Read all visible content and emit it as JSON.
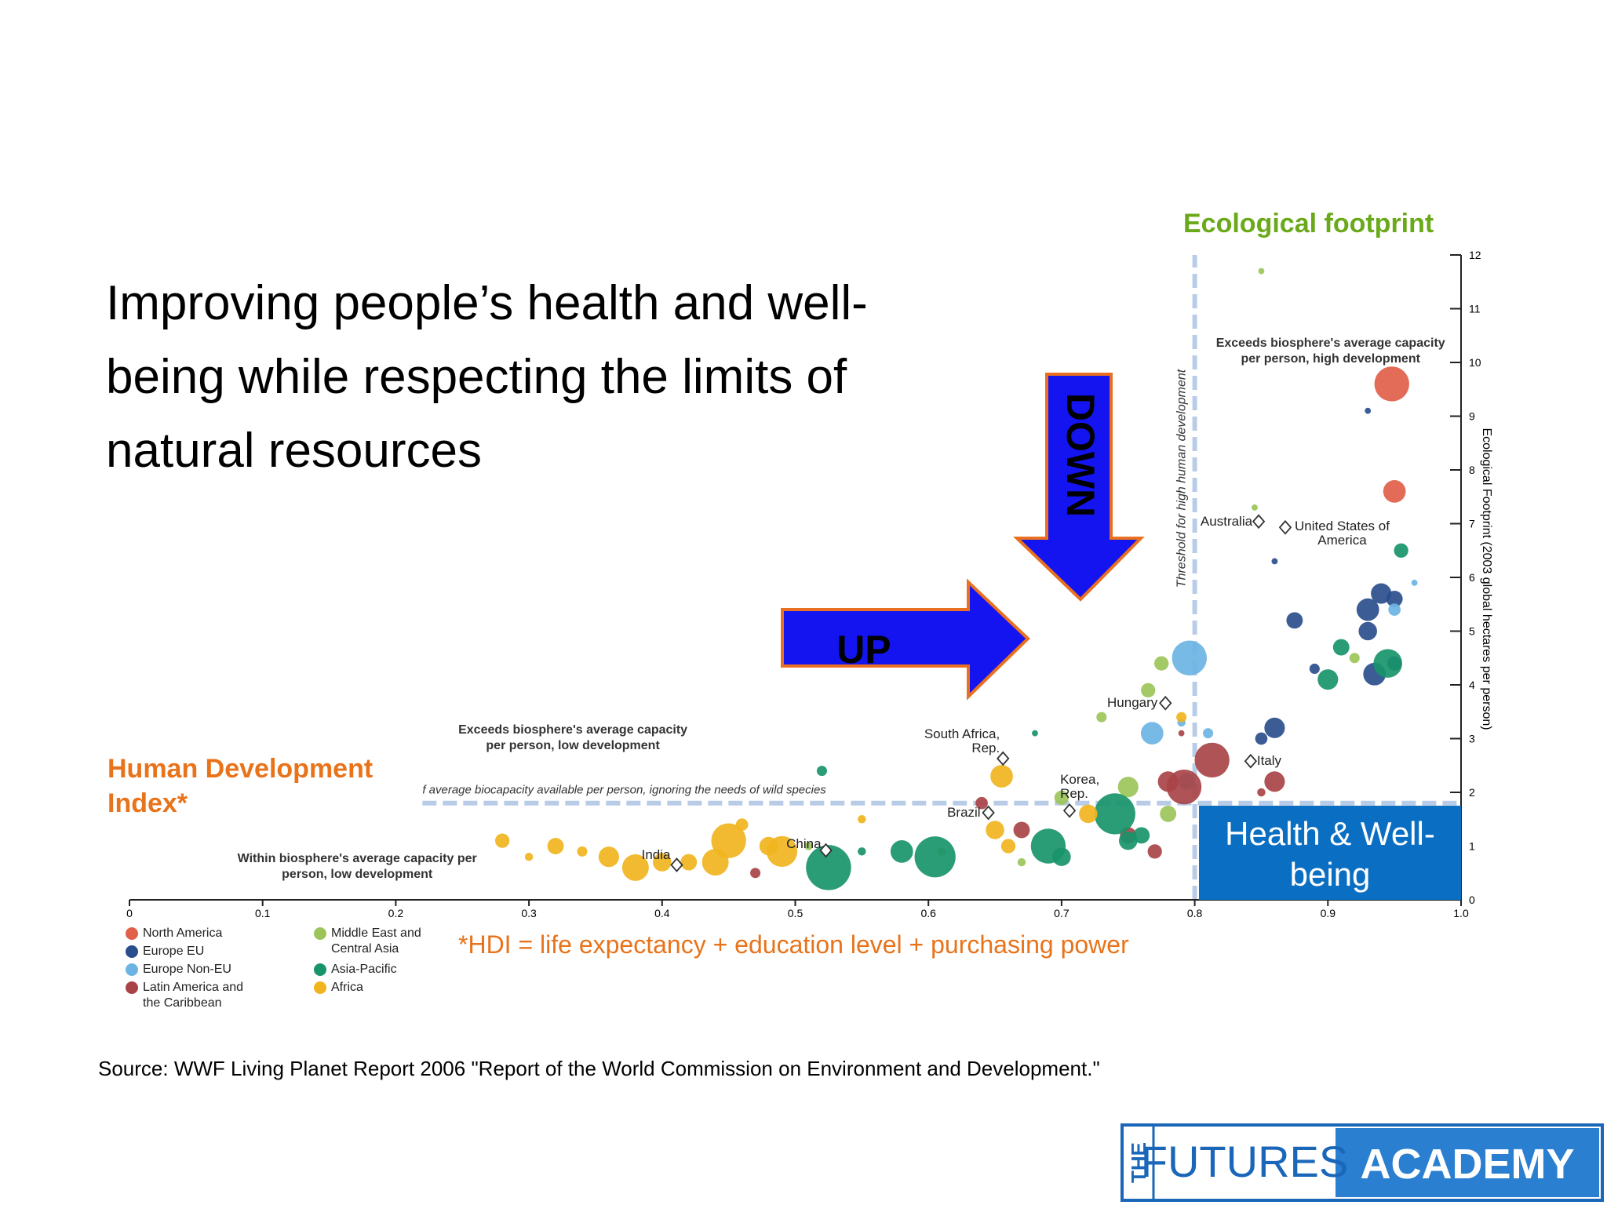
{
  "slide": {
    "title": "Improving people’s health and well-being while respecting the limits of natural resources",
    "y_heading": "Ecological footprint",
    "x_heading": "Human Development Index*",
    "footnote": "*HDI = life expectancy + education level + purchasing power",
    "source": "Source: WWF Living Planet Report 2006 \"Report of the World Commission on Environment and Development.\"",
    "arrow_up": "UP",
    "arrow_down": "DOWN",
    "box": "Health & Well-being",
    "logo": {
      "the": "THE",
      "futures": "FUTURES",
      "academy": "ACADEMY"
    }
  },
  "chart_data": {
    "type": "scatter",
    "y_axis_side": "right",
    "ylabel": "Ecological Footprint (2003 global hectares per person)",
    "xlim": [
      0,
      1
    ],
    "xticks": [
      0,
      0.1,
      0.2,
      0.3,
      0.4,
      0.5,
      0.6,
      0.7,
      0.8,
      0.9,
      {
        "value": 1,
        "label": "1.0"
      }
    ],
    "ylim": [
      0,
      12
    ],
    "yticks": [
      0,
      1,
      2,
      3,
      4,
      5,
      6,
      7,
      8,
      9,
      10,
      11,
      12
    ],
    "threshold_x": {
      "value": 0.8,
      "label": "Threshold for high human development"
    },
    "threshold_y": {
      "value": 1.8,
      "x_start": 0.22,
      "label": "f average biocapacity available per person, ignoring the needs of wild species"
    },
    "annotations": [
      {
        "text": "Exceeds biosphere's average capacity per person, high development",
        "x": 0.902,
        "y": 10.5
      },
      {
        "text": "Exceeds biosphere's average capacity per person, low development",
        "x": 0.333,
        "y": 3.3
      },
      {
        "text": "Within biosphere's average capacity per person, low development",
        "x": 0.171,
        "y": 0.9
      }
    ],
    "countries": [
      {
        "name": "India",
        "x": 0.411,
        "y": 0.65
      },
      {
        "name": "China",
        "x": 0.523,
        "y": 0.92
      },
      {
        "name": "Brazil",
        "x": 0.645,
        "y": 1.62
      },
      {
        "name": "South Africa, Rep.",
        "x": 0.656,
        "y": 2.63
      },
      {
        "name": "Korea, Rep.",
        "x": 0.706,
        "y": 1.66
      },
      {
        "name": "Hungary",
        "x": 0.778,
        "y": 3.66
      },
      {
        "name": "Australia",
        "x": 0.848,
        "y": 7.04
      },
      {
        "name": "United States of America",
        "x": 0.868,
        "y": 6.93
      },
      {
        "name": "Italy",
        "x": 0.842,
        "y": 2.58
      }
    ],
    "series": [
      {
        "name": "North America",
        "color": "#e0604a",
        "x": [
          0.948,
          0.95
        ],
        "values": [
          9.6,
          7.6
        ],
        "sizes": [
          17,
          11
        ]
      },
      {
        "name": "Europe EU",
        "color": "#2a4e8c",
        "x": [
          0.93,
          0.94,
          0.95,
          0.935,
          0.93,
          0.875,
          0.86,
          0.85,
          0.89,
          0.95,
          0.93,
          0.86
        ],
        "values": [
          5.4,
          5.7,
          5.6,
          4.2,
          5.0,
          5.2,
          3.2,
          3.0,
          4.3,
          4.4,
          9.1,
          6.3
        ],
        "sizes": [
          11,
          10,
          8,
          11,
          9,
          8,
          10,
          6,
          5,
          7,
          3,
          3
        ]
      },
      {
        "name": "Europe Non-EU",
        "color": "#6cb4e4",
        "x": [
          0.796,
          0.768,
          0.794,
          0.95,
          0.965,
          0.79,
          0.81
        ],
        "values": [
          4.5,
          3.1,
          2.2,
          5.4,
          5.9,
          3.3,
          3.1
        ],
        "sizes": [
          17,
          11,
          8,
          6,
          3,
          4,
          5
        ]
      },
      {
        "name": "Latin America and the Caribbean",
        "color": "#a84448",
        "x": [
          0.813,
          0.792,
          0.78,
          0.86,
          0.75,
          0.67,
          0.64,
          0.77,
          0.47,
          0.85,
          0.79
        ],
        "values": [
          2.6,
          2.1,
          2.2,
          2.2,
          1.2,
          1.3,
          1.8,
          0.9,
          0.5,
          2.0,
          3.1
        ],
        "sizes": [
          17,
          17,
          10,
          10,
          8,
          8,
          6,
          7,
          5,
          4,
          3
        ]
      },
      {
        "name": "Middle East and Central Asia",
        "color": "#9cc45a",
        "x": [
          0.775,
          0.765,
          0.85,
          0.845,
          0.78,
          0.75,
          0.7,
          0.73,
          0.67,
          0.61,
          0.51,
          0.92
        ],
        "values": [
          4.4,
          3.9,
          11.7,
          7.3,
          1.6,
          2.1,
          1.9,
          3.4,
          0.7,
          0.9,
          1.0,
          4.5
        ],
        "sizes": [
          7,
          7,
          3,
          3,
          8,
          10,
          7,
          5,
          4,
          4,
          4,
          5
        ]
      },
      {
        "name": "Asia-Pacific",
        "color": "#18946a",
        "x": [
          0.525,
          0.605,
          0.69,
          0.74,
          0.58,
          0.75,
          0.7,
          0.955,
          0.9,
          0.945,
          0.91,
          0.52,
          0.68,
          0.55,
          0.76
        ],
        "values": [
          0.6,
          0.8,
          1.0,
          1.6,
          0.9,
          1.1,
          0.8,
          6.5,
          4.1,
          4.4,
          4.7,
          2.4,
          3.1,
          0.9,
          1.2
        ],
        "sizes": [
          22,
          20,
          17,
          20,
          11,
          9,
          9,
          7,
          10,
          14,
          8,
          5,
          3,
          4,
          8
        ]
      },
      {
        "name": "Africa",
        "color": "#f0b41e",
        "x": [
          0.28,
          0.32,
          0.36,
          0.38,
          0.4,
          0.45,
          0.44,
          0.49,
          0.42,
          0.48,
          0.655,
          0.65,
          0.72,
          0.79,
          0.34,
          0.3,
          0.46,
          0.55,
          0.66
        ],
        "values": [
          1.1,
          1.0,
          0.8,
          0.6,
          0.7,
          1.1,
          0.7,
          0.9,
          0.7,
          1.0,
          2.3,
          1.3,
          1.6,
          3.4,
          0.9,
          0.8,
          1.4,
          1.5,
          1.0
        ],
        "sizes": [
          7,
          8,
          10,
          13,
          9,
          17,
          13,
          15,
          8,
          9,
          11,
          9,
          9,
          5,
          5,
          4,
          6,
          4,
          7
        ]
      }
    ]
  }
}
